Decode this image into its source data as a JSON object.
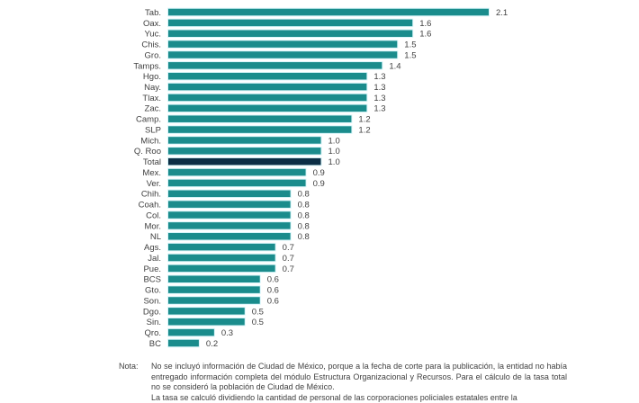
{
  "chart_data": {
    "type": "bar",
    "orientation": "horizontal",
    "title": "",
    "xlabel": "",
    "ylabel": "",
    "xlim": [
      0,
      2.1
    ],
    "grid": false,
    "legend": "none",
    "categories": [
      "Tab.",
      "Oax.",
      "Yuc.",
      "Chis.",
      "Gro.",
      "Tamps.",
      "Hgo.",
      "Nay.",
      "Tlax.",
      "Zac.",
      "Camp.",
      "SLP",
      "Mich.",
      "Q. Roo",
      "Total",
      "Mex.",
      "Ver.",
      "Chih.",
      "Coah.",
      "Col.",
      "Mor.",
      "NL",
      "Ags.",
      "Jal.",
      "Pue.",
      "BCS",
      "Gto.",
      "Son.",
      "Dgo.",
      "Sin.",
      "Qro.",
      "BC"
    ],
    "values": [
      2.1,
      1.6,
      1.6,
      1.5,
      1.5,
      1.4,
      1.3,
      1.3,
      1.3,
      1.3,
      1.2,
      1.2,
      1.0,
      1.0,
      1.0,
      0.9,
      0.9,
      0.8,
      0.8,
      0.8,
      0.8,
      0.8,
      0.7,
      0.7,
      0.7,
      0.6,
      0.6,
      0.6,
      0.5,
      0.5,
      0.3,
      0.2
    ],
    "value_labels": [
      "2.1",
      "1.6",
      "1.6",
      "1.5",
      "1.5",
      "1.4",
      "1.3",
      "1.3",
      "1.3",
      "1.3",
      "1.2",
      "1.2",
      "1.0",
      "1.0",
      "1.0",
      "0.9",
      "0.9",
      "0.8",
      "0.8",
      "0.8",
      "0.8",
      "0.8",
      "0.7",
      "0.7",
      "0.7",
      "0.6",
      "0.6",
      "0.6",
      "0.5",
      "0.5",
      "0.3",
      "0.2"
    ],
    "highlight_category": "Total",
    "colors": {
      "bar": "#1a8c8c",
      "highlight": "#0b2e45",
      "bar_glow": "#d8f6fa"
    }
  },
  "note": {
    "label": "Nota:",
    "lines": [
      "No se incluyó información de Ciudad de México, porque a la fecha de corte para la publicación, la entidad no había entregado información completa del módulo Estructura Organizacional y Recursos. Para el cálculo de la tasa total no se consideró la población de Ciudad de México.",
      "La tasa se calculó dividiendo la cantidad de personal de las corporaciones policiales estatales entre la"
    ]
  }
}
